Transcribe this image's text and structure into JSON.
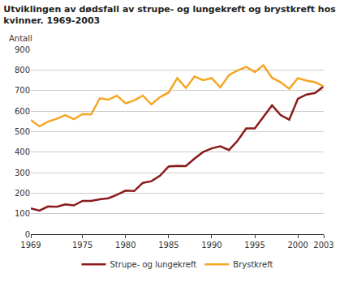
{
  "chart_data": {
    "type": "line",
    "title": "Utviklingen av dødsfall av strupe- og lungekreft og brystkreft hos kvinner. 1969-2003",
    "y_label": "Antall",
    "x": [
      1969,
      1970,
      1971,
      1972,
      1973,
      1974,
      1975,
      1976,
      1977,
      1978,
      1979,
      1980,
      1981,
      1982,
      1983,
      1984,
      1985,
      1986,
      1987,
      1988,
      1989,
      1990,
      1991,
      1992,
      1993,
      1994,
      1995,
      1996,
      1997,
      1998,
      1999,
      2000,
      2001,
      2002,
      2003
    ],
    "series": [
      {
        "name": "Strupe- og lungekreft",
        "color": "#8b1a1a",
        "values": [
          125,
          115,
          135,
          133,
          145,
          140,
          162,
          162,
          170,
          175,
          192,
          212,
          210,
          250,
          258,
          285,
          330,
          333,
          332,
          368,
          400,
          418,
          428,
          410,
          455,
          515,
          515,
          570,
          628,
          580,
          558,
          660,
          680,
          688,
          720
        ]
      },
      {
        "name": "Brystkreft",
        "color": "#f5a623",
        "values": [
          557,
          525,
          548,
          562,
          580,
          560,
          585,
          583,
          662,
          655,
          675,
          637,
          652,
          675,
          632,
          668,
          690,
          760,
          712,
          768,
          750,
          760,
          715,
          775,
          798,
          815,
          790,
          823,
          762,
          740,
          708,
          760,
          748,
          740,
          720
        ]
      }
    ],
    "xlim": [
      1969,
      2003
    ],
    "xticks": [
      1969,
      1975,
      1980,
      1985,
      1990,
      1995,
      2000,
      2003
    ],
    "ylim": [
      0,
      900
    ],
    "yticks": [
      0,
      100,
      200,
      300,
      400,
      500,
      600,
      700,
      800,
      900
    ],
    "grid": true,
    "legend": "bottom"
  }
}
